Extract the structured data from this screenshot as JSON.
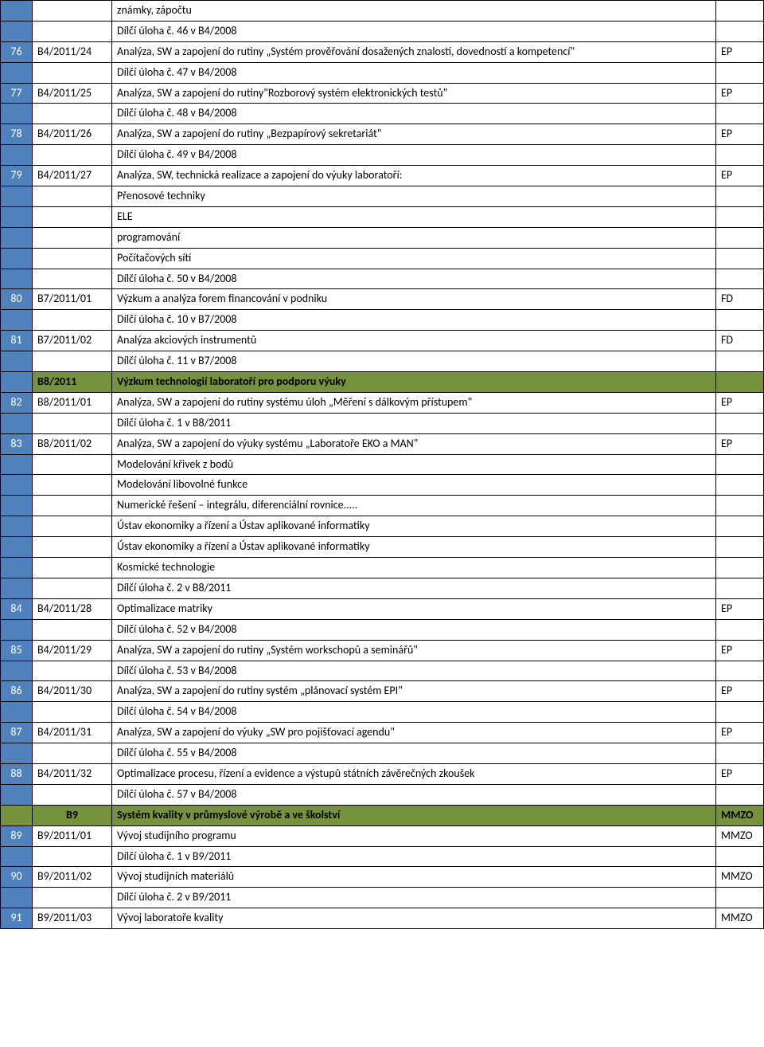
{
  "rows": [
    {
      "num": "",
      "code": "",
      "desc": "známky, zápočtu",
      "tag": "",
      "numBlue": true
    },
    {
      "num": "",
      "code": "",
      "desc": "Dílčí úloha č. 46 v B4/2008",
      "tag": "",
      "numBlue": true
    },
    {
      "num": "76",
      "code": "B4/2011/24",
      "desc": "Analýza, SW a zapojení do rutiny „Systém prověřování dosažených znalostí, dovedností a kompetencí\"",
      "tag": "EP",
      "numBlue": true
    },
    {
      "num": "",
      "code": "",
      "desc": "Dílčí úloha č. 47 v B4/2008",
      "tag": "",
      "numBlue": true
    },
    {
      "num": "77",
      "code": "B4/2011/25",
      "desc": "Analýza, SW a zapojení do rutiny\"Rozborový systém elektronických testů\"",
      "tag": "EP",
      "numBlue": true
    },
    {
      "num": "",
      "code": "",
      "desc": "Dílčí úloha č. 48 v B4/2008",
      "tag": "",
      "numBlue": true
    },
    {
      "num": "78",
      "code": "B4/2011/26",
      "desc": "Analýza, SW a zapojení do rutiny „Bezpapírový sekretariát\"",
      "tag": "EP",
      "numBlue": true
    },
    {
      "num": "",
      "code": "",
      "desc": "Dílčí úloha č. 49 v B4/2008",
      "tag": "",
      "numBlue": true
    },
    {
      "num": "79",
      "code": "B4/2011/27",
      "desc": "Analýza, SW, technická realizace a zapojení do výuky laboratoří:",
      "tag": "EP",
      "numBlue": true
    },
    {
      "num": "",
      "code": "",
      "desc": "Přenosové techniky",
      "tag": "",
      "numBlue": true
    },
    {
      "num": "",
      "code": "",
      "desc": "ELE",
      "tag": "",
      "numBlue": true
    },
    {
      "num": "",
      "code": "",
      "desc": "programování",
      "tag": "",
      "numBlue": true
    },
    {
      "num": "",
      "code": "",
      "desc": "Počítačových sítí",
      "tag": "",
      "numBlue": true
    },
    {
      "num": "",
      "code": "",
      "desc": "Dílčí úloha č. 50 v B4/2008",
      "tag": "",
      "numBlue": true
    },
    {
      "num": "80",
      "code": "B7/2011/01",
      "desc": "Výzkum a analýza forem financování v podniku",
      "tag": "FD",
      "numBlue": true
    },
    {
      "num": "",
      "code": "",
      "desc": "Dílčí úloha č. 10 v B7/2008",
      "tag": "",
      "numBlue": true
    },
    {
      "num": "81",
      "code": "B7/2011/02",
      "desc": "Analýza akciových instrumentů",
      "tag": "FD",
      "numBlue": true
    },
    {
      "num": "",
      "code": "",
      "desc": "Dílčí úloha č. 11 v B7/2008",
      "tag": "",
      "numBlue": true
    },
    {
      "num": "",
      "code": "B8/2011",
      "desc": "Výzkum technologií laboratoří pro podporu výuky",
      "tag": "",
      "section": true
    },
    {
      "num": "82",
      "code": "B8/2011/01",
      "desc": "Analýza, SW a zapojení do rutiny systému úloh „Měření s dálkovým přístupem\"",
      "tag": "EP",
      "numBlue": true
    },
    {
      "num": "",
      "code": "",
      "desc": "Dílčí úloha č. 1 v B8/2011",
      "tag": "",
      "numBlue": true
    },
    {
      "num": "83",
      "code": "B8/2011/02",
      "desc": "Analýza, SW a zapojení do výuky systému „Laboratoře EKO a MAN\"",
      "tag": "EP",
      "numBlue": true
    },
    {
      "num": "",
      "code": "",
      "desc": "Modelování křivek z bodů",
      "tag": "",
      "numBlue": true
    },
    {
      "num": "",
      "code": "",
      "desc": "Modelování libovolné funkce",
      "tag": "",
      "numBlue": true
    },
    {
      "num": "",
      "code": "",
      "desc": "Numerické řešení – integrálu, diferenciální rovnice.....",
      "tag": "",
      "numBlue": true
    },
    {
      "num": "",
      "code": "",
      "desc": "Ústav ekonomiky a řízení a Ústav aplikované informatiky",
      "tag": "",
      "numBlue": true
    },
    {
      "num": "",
      "code": "",
      "desc": "Ústav ekonomiky a řízení a Ústav aplikované informatiky",
      "tag": "",
      "numBlue": true
    },
    {
      "num": "",
      "code": "",
      "desc": "Kosmické technologie",
      "tag": "",
      "numBlue": true
    },
    {
      "num": "",
      "code": "",
      "desc": "Dílčí úloha č. 2 v B8/2011",
      "tag": "",
      "numBlue": true
    },
    {
      "num": "84",
      "code": "B4/2011/28",
      "desc": "Optimalizace matriky",
      "tag": "EP",
      "numBlue": true
    },
    {
      "num": "",
      "code": "",
      "desc": "Dílčí úloha č. 52 v B4/2008",
      "tag": "",
      "numBlue": true
    },
    {
      "num": "85",
      "code": "B4/2011/29",
      "desc": "Analýza, SW a zapojení do rutiny „Systém workschopů a seminářů\"",
      "tag": "EP",
      "numBlue": true
    },
    {
      "num": "",
      "code": "",
      "desc": "Dílčí úloha č. 53 v B4/2008",
      "tag": "",
      "numBlue": true
    },
    {
      "num": "86",
      "code": "B4/2011/30",
      "desc": "Analýza, SW a zapojení do rutiny systém „plánovací systém EPI\"",
      "tag": "EP",
      "numBlue": true
    },
    {
      "num": "",
      "code": "",
      "desc": "Dílčí úloha č. 54 v B4/2008",
      "tag": "",
      "numBlue": true
    },
    {
      "num": "87",
      "code": "B4/2011/31",
      "desc": "Analýza, SW a zapojení do výuky „SW pro pojišťovací agendu\"",
      "tag": "EP",
      "numBlue": true
    },
    {
      "num": "",
      "code": "",
      "desc": "Dílčí úloha č. 55 v B4/2008",
      "tag": "",
      "numBlue": true
    },
    {
      "num": "88",
      "code": "B4/2011/32",
      "desc": "Optimalizace procesu, řízení a evidence a výstupů státních závěrečných zkoušek",
      "tag": "EP",
      "numBlue": true
    },
    {
      "num": "",
      "code": "",
      "desc": "Dílčí úloha č. 57 v B4/2008",
      "tag": "",
      "numBlue": true
    },
    {
      "num": "",
      "code": "B9",
      "desc": "Systém kvality v průmyslové výrobě a ve školství",
      "tag": "MMZO",
      "sectionB9": true
    },
    {
      "num": "89",
      "code": "B9/2011/01",
      "desc": "Vývoj studijního programu",
      "tag": "MMZO",
      "numBlue": true
    },
    {
      "num": "",
      "code": "",
      "desc": "Dílčí úloha č. 1 v B9/2011",
      "tag": "",
      "numBlue": true
    },
    {
      "num": "90",
      "code": "B9/2011/02",
      "desc": "Vývoj studijních materiálů",
      "tag": "MMZO",
      "numBlue": true
    },
    {
      "num": "",
      "code": "",
      "desc": "Dílčí úloha č. 2 v B9/2011",
      "tag": "",
      "numBlue": true
    },
    {
      "num": "91",
      "code": "B9/2011/03",
      "desc": "Vývoj laboratoře kvality",
      "tag": "MMZO",
      "numBlue": true
    }
  ],
  "colors": {
    "blue": "#4f81bd",
    "green": "#76923c",
    "border": "#000000",
    "bg": "#ffffff"
  }
}
